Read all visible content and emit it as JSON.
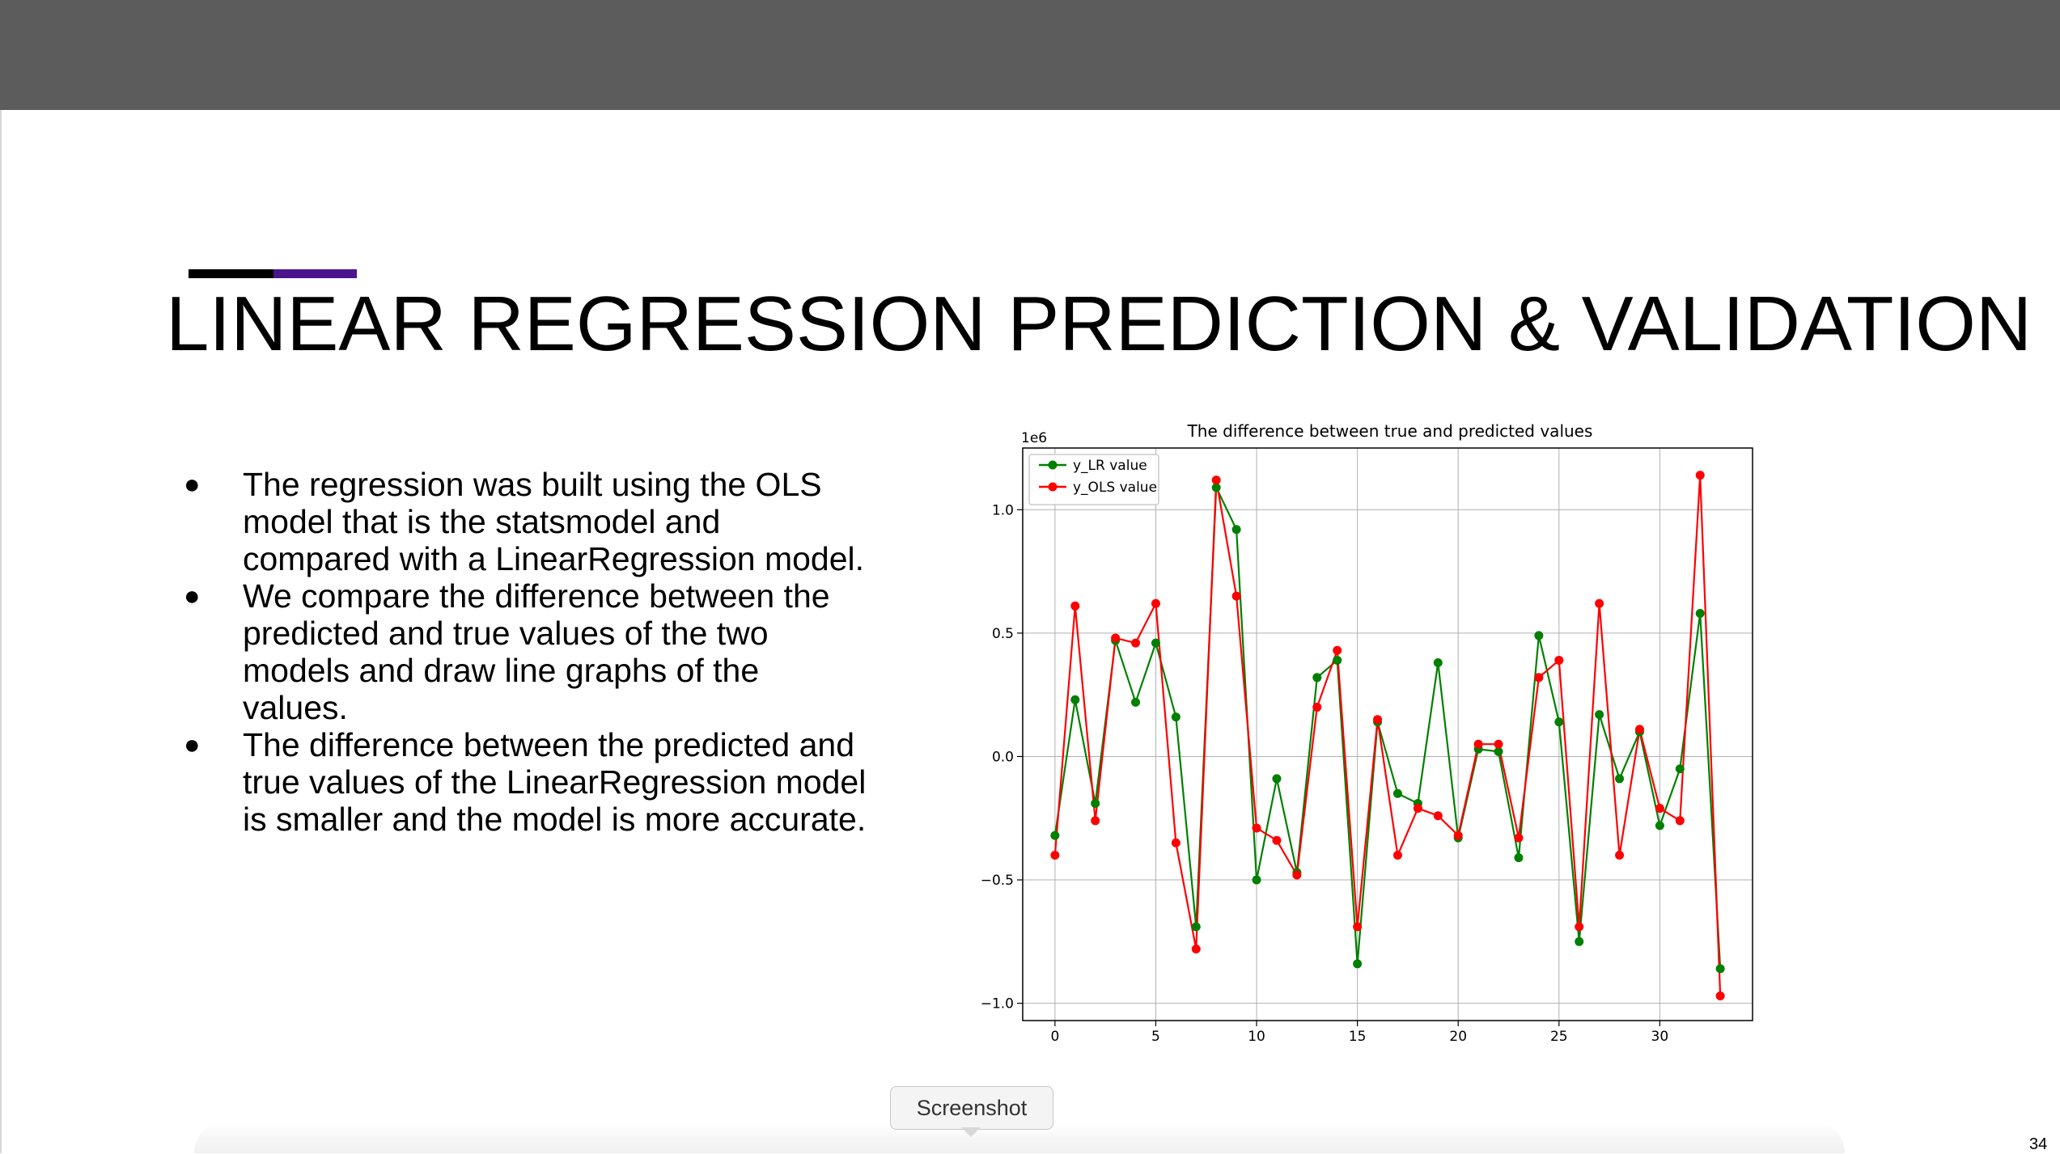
{
  "slide": {
    "title": "LINEAR REGRESSION PREDICTION & VALIDATION",
    "page_number": "34",
    "accent_colors": [
      "#000000",
      "#4a148c"
    ],
    "bullets": [
      "The regression was built using the OLS model that is the statsmodel and compared with a LinearRegression model.",
      "We compare the difference between the predicted and true values of the two models and draw line graphs of the values.",
      "The difference between the predicted and true values of the LinearRegression model is smaller and the model is more accurate."
    ]
  },
  "tooltip": {
    "label": "Screenshot"
  },
  "chart_data": {
    "type": "line",
    "title": "The difference between true and predicted values",
    "xlabel": "",
    "ylabel": "",
    "y_offset_label": "1e6",
    "xlim": [
      -1.6,
      34.6
    ],
    "ylim": [
      -1.07,
      1.25
    ],
    "x_ticks": [
      0,
      5,
      10,
      15,
      20,
      25,
      30
    ],
    "y_ticks": [
      -1.0,
      -0.5,
      0.0,
      0.5,
      1.0
    ],
    "y_tick_labels": [
      "−1.0",
      "−0.5",
      "0.0",
      "0.5",
      "1.0"
    ],
    "grid": true,
    "legend_position": "top-left",
    "x": [
      0,
      1,
      2,
      3,
      4,
      5,
      6,
      7,
      8,
      9,
      10,
      11,
      12,
      13,
      14,
      15,
      16,
      17,
      18,
      19,
      20,
      21,
      22,
      23,
      24,
      25,
      26,
      27,
      28,
      29,
      30,
      31,
      32,
      33
    ],
    "series": [
      {
        "name": "y_LR value",
        "color": "#008000",
        "values": [
          -0.32,
          0.23,
          -0.19,
          0.47,
          0.22,
          0.46,
          0.16,
          -0.69,
          1.09,
          0.92,
          -0.5,
          -0.09,
          -0.47,
          0.32,
          0.39,
          -0.84,
          0.14,
          -0.15,
          -0.19,
          0.38,
          -0.33,
          0.03,
          0.02,
          -0.41,
          0.49,
          0.14,
          -0.75,
          0.17,
          -0.09,
          0.1,
          -0.28,
          -0.05,
          0.58,
          -0.86
        ]
      },
      {
        "name": "y_OLS value",
        "color": "#ff0000",
        "values": [
          -0.4,
          0.61,
          -0.26,
          0.48,
          0.46,
          0.62,
          -0.35,
          -0.78,
          1.12,
          0.65,
          -0.29,
          -0.34,
          -0.48,
          0.2,
          0.43,
          -0.69,
          0.15,
          -0.4,
          -0.21,
          -0.24,
          -0.32,
          0.05,
          0.05,
          -0.33,
          0.32,
          0.39,
          -0.69,
          0.62,
          -0.4,
          0.11,
          -0.21,
          -0.26,
          1.14,
          -0.97
        ]
      }
    ]
  }
}
